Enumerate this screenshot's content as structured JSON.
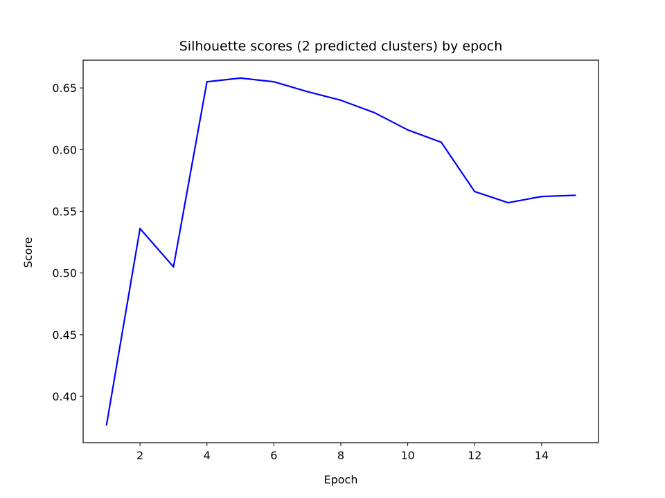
{
  "chart_data": {
    "type": "line",
    "title": "Silhouette scores (2 predicted clusters) by epoch",
    "xlabel": "Epoch",
    "ylabel": "Score",
    "x": [
      1,
      2,
      3,
      4,
      5,
      6,
      7,
      8,
      9,
      10,
      11,
      12,
      13,
      14,
      15
    ],
    "series": [
      {
        "values": [
          0.377,
          0.536,
          0.505,
          0.655,
          0.658,
          0.655,
          0.647,
          0.64,
          0.63,
          0.616,
          0.606,
          0.566,
          0.557,
          0.562,
          0.563
        ],
        "color": "#0000ff"
      }
    ],
    "xlim": [
      0.3,
      15.7
    ],
    "ylim": [
      0.3625,
      0.6725
    ],
    "xticks": [
      2,
      4,
      6,
      8,
      10,
      12,
      14
    ],
    "xtick_labels": [
      "2",
      "4",
      "6",
      "8",
      "10",
      "12",
      "14"
    ],
    "yticks": [
      0.4,
      0.45,
      0.5,
      0.55,
      0.6,
      0.65
    ],
    "ytick_labels": [
      "0.40",
      "0.45",
      "0.50",
      "0.55",
      "0.60",
      "0.65"
    ],
    "grid": false,
    "legend": false
  }
}
